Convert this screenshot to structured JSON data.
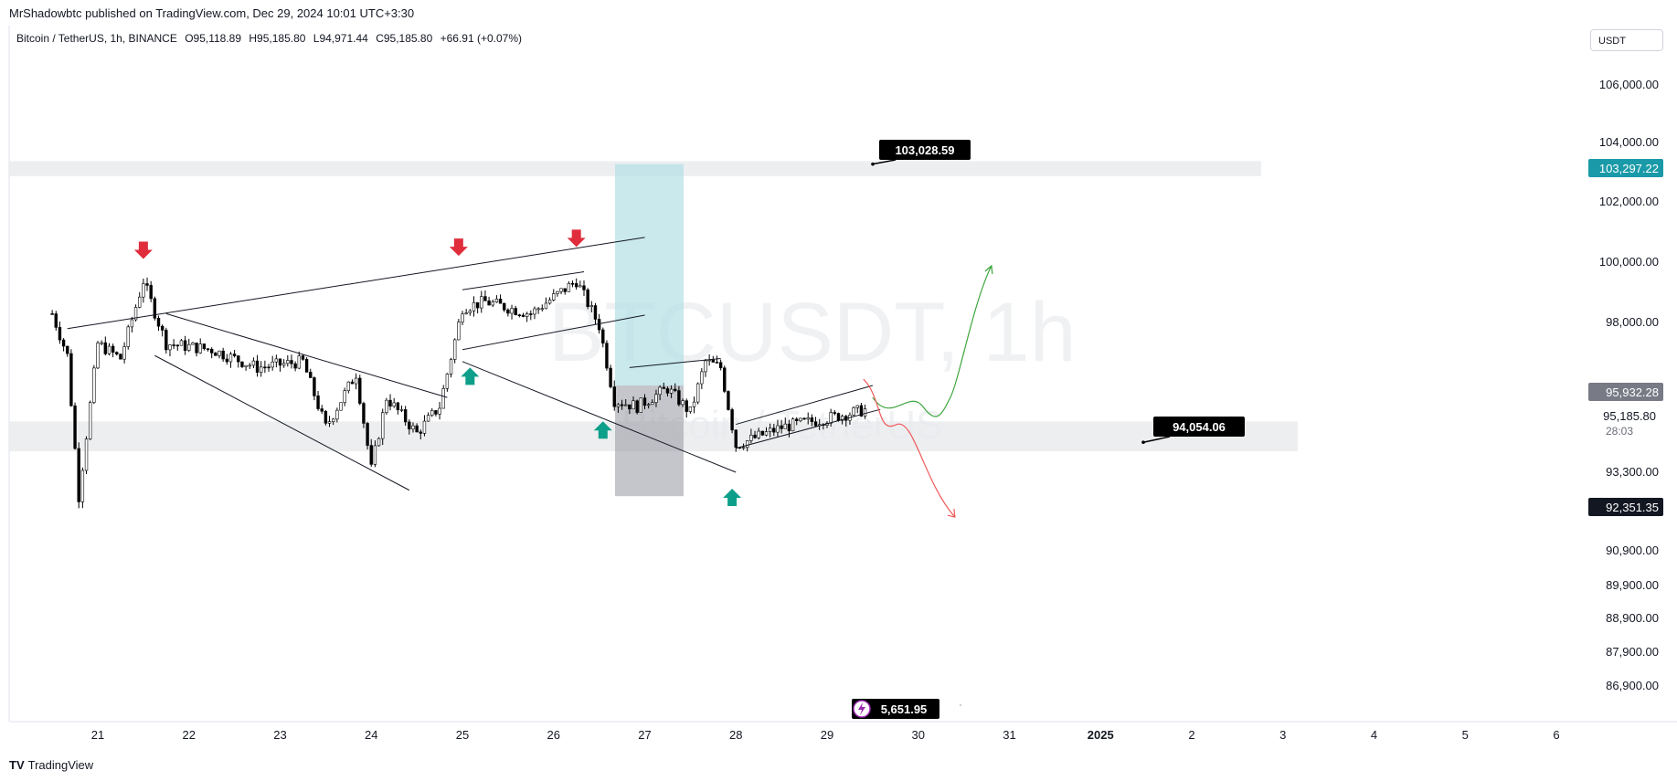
{
  "header": {
    "publisher": "MrShadowbtc published on TradingView.com, Dec 29, 2024 10:01 UTC+3:30",
    "symbol_name": "Bitcoin / TetherUS, 1h, BINANCE",
    "open": "O95,118.89",
    "high": "H95,185.80",
    "low": "L94,971.44",
    "close": "C95,185.80",
    "change": "+66.91 (+0.07%)",
    "currency": "USDT"
  },
  "watermark": {
    "main": "BTCUSDT, 1h",
    "sub": "Bitcoin / TetherUS"
  },
  "footer": {
    "brand": "TradingView",
    "logo": "TV"
  },
  "colors": {
    "up": "#089981",
    "down": "#f23645",
    "arrow_down": "#e02d3c",
    "arrow_up": "#0e9f8a",
    "zone": "#e9eaec",
    "tp_zone": "#b2dfe6",
    "sl_zone": "#9598a1",
    "dark_label": "#000000",
    "price_badge": "#1a9aa8",
    "grey_badge": "#787b86",
    "navy_badge": "#131722"
  },
  "chart_data": {
    "type": "candlestick",
    "x_tick_labels": [
      "21",
      "22",
      "23",
      "24",
      "25",
      "26",
      "27",
      "28",
      "29",
      "30",
      "31",
      "2025",
      "2",
      "3",
      "4",
      "5",
      "6"
    ],
    "y_tick_labels": [
      "106,000.00",
      "104,000.00",
      "102,000.00",
      "100,000.00",
      "98,000.00",
      "93,300.00",
      "90,900.00",
      "89,900.00",
      "88,900.00",
      "87,900.00",
      "86,900.00"
    ],
    "ohlc_keypoints": [
      {
        "date": "2024-12-20 12:00",
        "price": 98400
      },
      {
        "date": "2024-12-20 16:00",
        "price": 97000
      },
      {
        "date": "2024-12-20 19:00",
        "price": 92300
      },
      {
        "date": "2024-12-21 00:00",
        "price": 97400
      },
      {
        "date": "2024-12-21 06:00",
        "price": 96900
      },
      {
        "date": "2024-12-21 12:00",
        "price": 99500
      },
      {
        "date": "2024-12-21 18:00",
        "price": 97400
      },
      {
        "date": "2024-12-22 06:00",
        "price": 97200
      },
      {
        "date": "2024-12-22 18:00",
        "price": 96600
      },
      {
        "date": "2024-12-23 06:00",
        "price": 96800
      },
      {
        "date": "2024-12-23 12:00",
        "price": 94600
      },
      {
        "date": "2024-12-23 20:00",
        "price": 96400
      },
      {
        "date": "2024-12-24 00:00",
        "price": 93200
      },
      {
        "date": "2024-12-24 04:00",
        "price": 95600
      },
      {
        "date": "2024-12-24 12:00",
        "price": 94400
      },
      {
        "date": "2024-12-24 18:00",
        "price": 95300
      },
      {
        "date": "2024-12-25 00:00",
        "price": 98600
      },
      {
        "date": "2024-12-25 06:00",
        "price": 98800
      },
      {
        "date": "2024-12-25 18:00",
        "price": 98400
      },
      {
        "date": "2024-12-26 06:00",
        "price": 99500
      },
      {
        "date": "2024-12-26 12:00",
        "price": 98000
      },
      {
        "date": "2024-12-26 16:00",
        "price": 95500
      },
      {
        "date": "2024-12-26 22:00",
        "price": 95300
      },
      {
        "date": "2024-12-27 06:00",
        "price": 95900
      },
      {
        "date": "2024-12-27 12:00",
        "price": 95100
      },
      {
        "date": "2024-12-27 16:00",
        "price": 96800
      },
      {
        "date": "2024-12-27 20:00",
        "price": 96600
      },
      {
        "date": "2024-12-28 00:00",
        "price": 94000
      },
      {
        "date": "2024-12-28 12:00",
        "price": 94600
      },
      {
        "date": "2024-12-29 00:00",
        "price": 94900
      },
      {
        "date": "2024-12-29 10:00",
        "price": 95186
      }
    ],
    "zones": [
      {
        "type": "resistance",
        "from": 103000,
        "to": 103500
      },
      {
        "type": "support",
        "from": 93800,
        "to": 94800
      }
    ],
    "position": {
      "entry": 96000,
      "target": 103400,
      "stop": 92300
    },
    "callouts": [
      "103,028.59",
      "94,054.06",
      "5,651.95"
    ],
    "price_labels": [
      {
        "text": "103,297.22",
        "style": "teal"
      },
      {
        "text": "95,932.28",
        "style": "grey"
      },
      {
        "text": "95,185.80",
        "style": "plain"
      },
      {
        "text": "28:03",
        "style": "plain"
      },
      {
        "text": "92,351.35",
        "style": "navy"
      }
    ],
    "scenarios": [
      {
        "direction": "bullish",
        "target": 100000
      },
      {
        "direction": "bearish",
        "target": 91600
      }
    ]
  }
}
